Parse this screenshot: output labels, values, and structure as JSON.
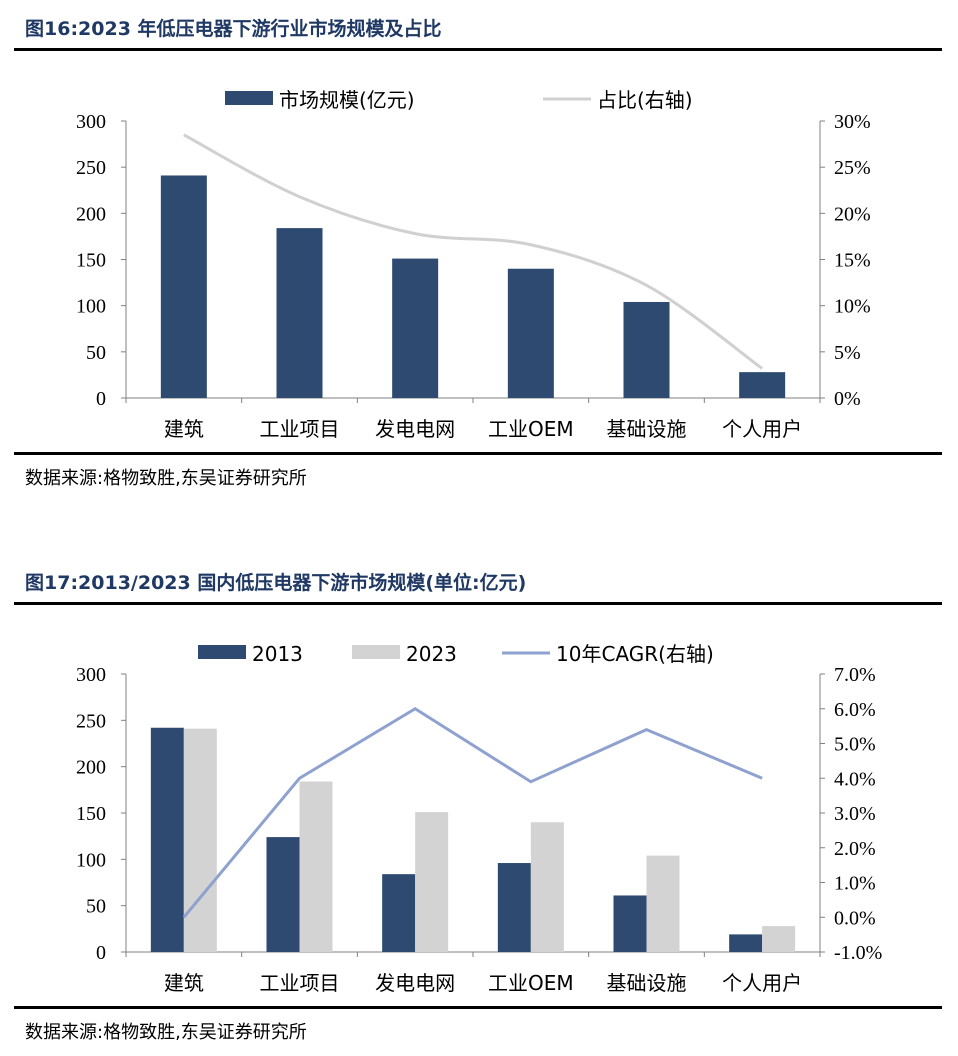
{
  "figure1": {
    "title": "图16:2023 年低压电器下游行业市场规模及占比",
    "source": "数据来源:格物致胜,东吴证券研究所"
  },
  "figure2": {
    "title": "图17:2013/2023 国内低压电器下游市场规模(单位:亿元)",
    "source": "数据来源:格物致胜,东吴证券研究所"
  },
  "chart_data": [
    {
      "type": "bar",
      "title": "",
      "categories": [
        "建筑",
        "工业项目",
        "发电电网",
        "工业OEM",
        "基础设施",
        "个人用户"
      ],
      "series": [
        {
          "name": "市场规模(亿元)",
          "kind": "bar",
          "axis": "left",
          "color": "#2e4a70",
          "values": [
            241,
            184,
            151,
            140,
            104,
            28
          ]
        },
        {
          "name": "占比(右轴)",
          "kind": "line",
          "axis": "right",
          "color": "#d0d0d0",
          "values": [
            0.285,
            0.218,
            0.178,
            0.166,
            0.122,
            0.032
          ]
        }
      ],
      "y_left": {
        "min": 0,
        "max": 300,
        "ticks": [
          "0",
          "50",
          "100",
          "150",
          "200",
          "250",
          "300"
        ]
      },
      "y_right": {
        "min": 0,
        "max": 0.3,
        "ticks": [
          "0%",
          "5%",
          "10%",
          "15%",
          "20%",
          "25%",
          "30%"
        ]
      },
      "legend": "top-center",
      "grid": false
    },
    {
      "type": "bar",
      "title": "",
      "categories": [
        "建筑",
        "工业项目",
        "发电电网",
        "工业OEM",
        "基础设施",
        "个人用户"
      ],
      "series": [
        {
          "name": "2013",
          "kind": "bar",
          "axis": "left",
          "color": "#2e4a70",
          "values": [
            242,
            124,
            84,
            96,
            61,
            19
          ]
        },
        {
          "name": "2023",
          "kind": "bar",
          "axis": "left",
          "color": "#d3d3d3",
          "values": [
            241,
            184,
            151,
            140,
            104,
            28
          ]
        },
        {
          "name": "10年CAGR(右轴)",
          "kind": "line",
          "axis": "right",
          "color": "#8fa2cf",
          "values": [
            0.0,
            0.04,
            0.06,
            0.039,
            0.054,
            0.04
          ]
        }
      ],
      "y_left": {
        "min": 0,
        "max": 300,
        "ticks": [
          "0",
          "50",
          "100",
          "150",
          "200",
          "250",
          "300"
        ]
      },
      "y_right": {
        "min": -0.01,
        "max": 0.07,
        "ticks": [
          "-1.0%",
          "0.0%",
          "1.0%",
          "2.0%",
          "3.0%",
          "4.0%",
          "5.0%",
          "6.0%",
          "7.0%"
        ]
      },
      "legend": "top-center",
      "grid": false
    }
  ]
}
